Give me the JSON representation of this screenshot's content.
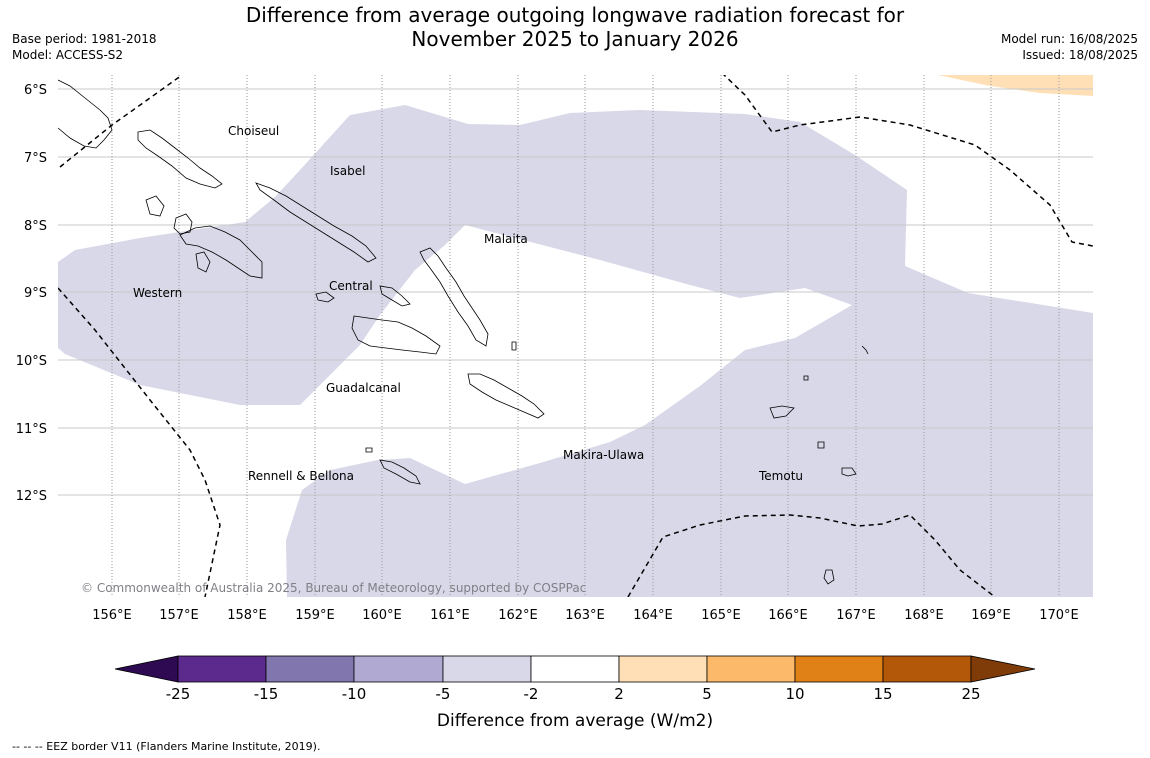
{
  "title": {
    "line1": "Difference from average outgoing longwave radiation forecast for",
    "line2": "November 2025 to January 2026"
  },
  "meta": {
    "base_period": "Base period: 1981-2018",
    "model": "Model: ACCESS-S2",
    "model_run": "Model run: 16/08/2025",
    "issued": "Issued: 18/08/2025"
  },
  "map": {
    "lat_labels": [
      "6°S",
      "7°S",
      "8°S",
      "9°S",
      "10°S",
      "11°S",
      "12°S"
    ],
    "lon_labels": [
      "156°E",
      "157°E",
      "158°E",
      "159°E",
      "160°E",
      "161°E",
      "162°E",
      "163°E",
      "164°E",
      "165°E",
      "166°E",
      "167°E",
      "168°E",
      "169°E",
      "170°E"
    ],
    "regions": [
      "Choiseul",
      "Isabel",
      "Malaita",
      "Western",
      "Central",
      "Guadalcanal",
      "Makira-Ulawa",
      "Temotu",
      "Rennell & Bellona"
    ],
    "copyright": "© Commonwealth of Australia 2025, Bureau of Meteorology, supported by COSPPac"
  },
  "colorbar": {
    "ticks": [
      "-25",
      "-15",
      "-10",
      "-5",
      "-2",
      "2",
      "5",
      "10",
      "15",
      "25"
    ],
    "colors": [
      "#2d0a52",
      "#5b2a8c",
      "#8276ae",
      "#b0a9d2",
      "#d8d8e9",
      "#ffffff",
      "#ffe0b6",
      "#fdb96a",
      "#e08118",
      "#b35708",
      "#7f3b08"
    ],
    "title": "Difference from average (W/m2)"
  },
  "footer": "--  --  -- EEZ border V11 (Flanders Marine Institute, 2019)."
}
